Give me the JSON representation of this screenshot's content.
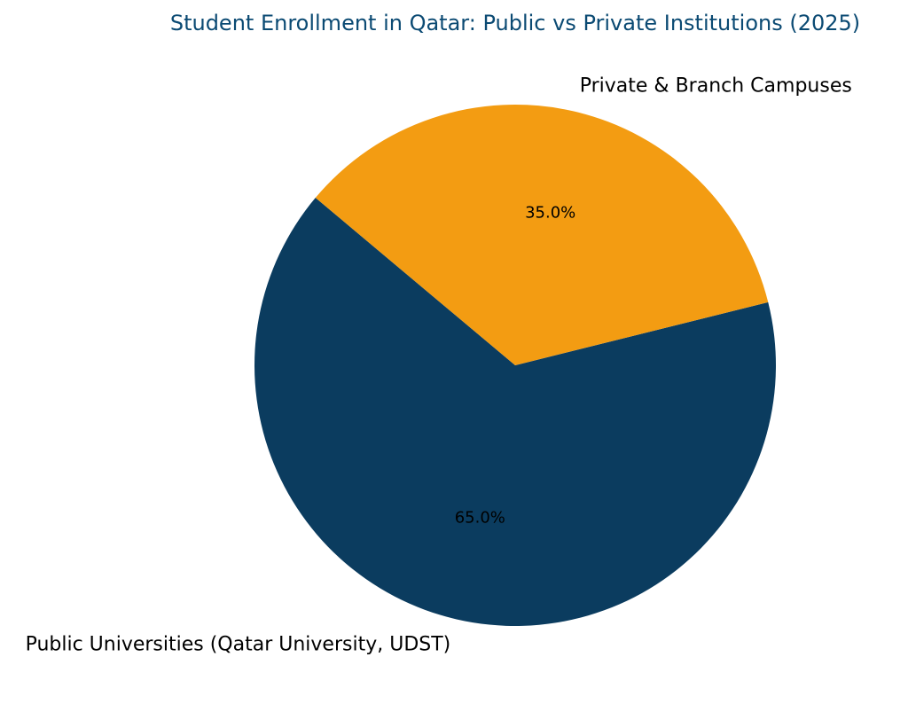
{
  "chart_data": {
    "type": "pie",
    "title": "Student Enrollment in Qatar: Public vs Private Institutions (2025)",
    "title_color": "#0b4a73",
    "start_angle_deg": 140,
    "direction": "counterclockwise",
    "slices": [
      {
        "label": "Public Universities (Qatar University, UDST)",
        "value": 65.0,
        "pct_label": "65.0%",
        "color": "#0b3c5f"
      },
      {
        "label": "Private & Branch Campuses",
        "value": 35.0,
        "pct_label": "35.0%",
        "color": "#f39c12"
      }
    ]
  }
}
